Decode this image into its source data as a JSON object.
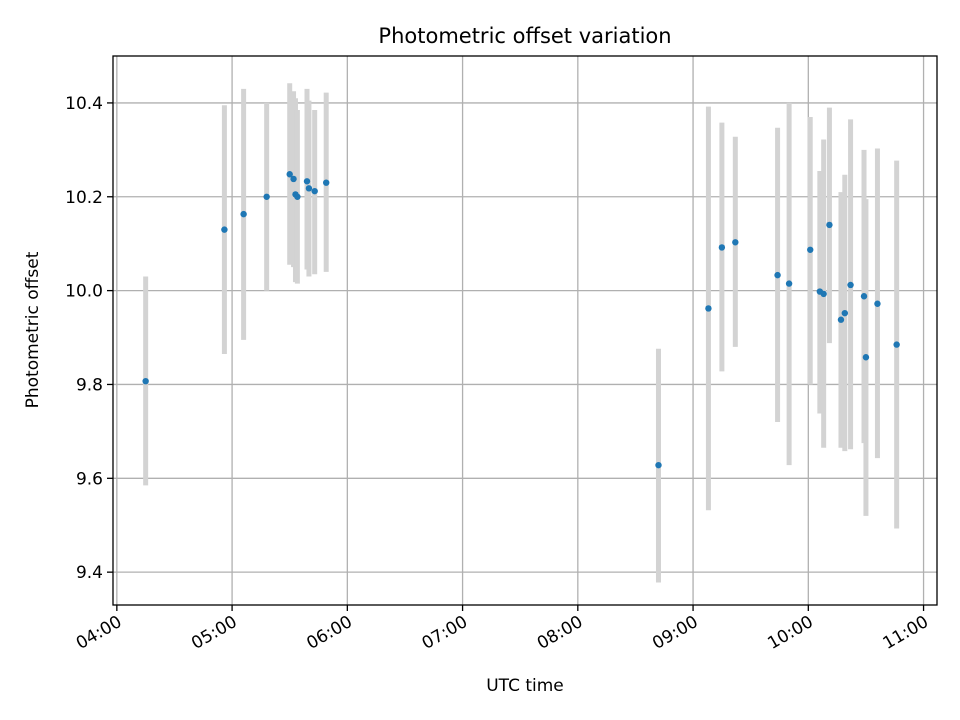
{
  "chart_data": {
    "type": "scatter",
    "title": "Photometric offset variation",
    "xlabel": "UTC time",
    "ylabel": "Photometric offset",
    "x_is_time": true,
    "xlim": [
      "03:58",
      "11:07"
    ],
    "ylim": [
      9.33,
      10.5
    ],
    "grid": true,
    "x_ticks": [
      "04:00",
      "05:00",
      "06:00",
      "07:00",
      "08:00",
      "09:00",
      "10:00",
      "11:00"
    ],
    "y_ticks": [
      9.4,
      9.6,
      9.8,
      10.0,
      10.2,
      10.4
    ],
    "colors": {
      "point": "#1f77b4",
      "errorbar": "#d3d3d3",
      "grid": "#b0b0b0",
      "axes": "#000000"
    },
    "points": [
      {
        "x": "04:15",
        "y": 9.807,
        "ylo": 9.585,
        "yhi": 10.03
      },
      {
        "x": "04:56",
        "y": 10.13,
        "ylo": 9.865,
        "yhi": 10.395
      },
      {
        "x": "05:06",
        "y": 10.163,
        "ylo": 9.895,
        "yhi": 10.43
      },
      {
        "x": "05:18",
        "y": 10.2,
        "ylo": 10.0,
        "yhi": 10.4
      },
      {
        "x": "05:30",
        "y": 10.248,
        "ylo": 10.055,
        "yhi": 10.442
      },
      {
        "x": "05:32",
        "y": 10.238,
        "ylo": 10.05,
        "yhi": 10.425
      },
      {
        "x": "05:33",
        "y": 10.205,
        "ylo": 10.018,
        "yhi": 10.41
      },
      {
        "x": "05:34",
        "y": 10.2,
        "ylo": 10.015,
        "yhi": 10.385
      },
      {
        "x": "05:39",
        "y": 10.233,
        "ylo": 10.045,
        "yhi": 10.43
      },
      {
        "x": "05:40",
        "y": 10.218,
        "ylo": 10.03,
        "yhi": 10.405
      },
      {
        "x": "05:43",
        "y": 10.212,
        "ylo": 10.035,
        "yhi": 10.385
      },
      {
        "x": "05:49",
        "y": 10.23,
        "ylo": 10.04,
        "yhi": 10.422
      },
      {
        "x": "08:42",
        "y": 9.628,
        "ylo": 9.378,
        "yhi": 9.876
      },
      {
        "x": "09:08",
        "y": 9.962,
        "ylo": 9.532,
        "yhi": 10.392
      },
      {
        "x": "09:15",
        "y": 10.092,
        "ylo": 9.828,
        "yhi": 10.358
      },
      {
        "x": "09:22",
        "y": 10.103,
        "ylo": 9.88,
        "yhi": 10.328
      },
      {
        "x": "09:44",
        "y": 10.033,
        "ylo": 9.72,
        "yhi": 10.347
      },
      {
        "x": "09:50",
        "y": 10.015,
        "ylo": 9.628,
        "yhi": 10.4
      },
      {
        "x": "10:01",
        "y": 10.087,
        "ylo": 9.8,
        "yhi": 10.37
      },
      {
        "x": "10:06",
        "y": 9.998,
        "ylo": 9.738,
        "yhi": 10.255
      },
      {
        "x": "10:08",
        "y": 9.993,
        "ylo": 9.665,
        "yhi": 10.322
      },
      {
        "x": "10:11",
        "y": 10.14,
        "ylo": 9.888,
        "yhi": 10.39
      },
      {
        "x": "10:17",
        "y": 9.938,
        "ylo": 9.665,
        "yhi": 10.21
      },
      {
        "x": "10:19",
        "y": 9.952,
        "ylo": 9.658,
        "yhi": 10.247
      },
      {
        "x": "10:22",
        "y": 10.012,
        "ylo": 9.662,
        "yhi": 10.365
      },
      {
        "x": "10:29",
        "y": 9.988,
        "ylo": 9.675,
        "yhi": 10.3
      },
      {
        "x": "10:30",
        "y": 9.858,
        "ylo": 9.52,
        "yhi": 10.195
      },
      {
        "x": "10:36",
        "y": 9.972,
        "ylo": 9.643,
        "yhi": 10.303
      },
      {
        "x": "10:46",
        "y": 9.885,
        "ylo": 9.493,
        "yhi": 10.277
      }
    ]
  }
}
